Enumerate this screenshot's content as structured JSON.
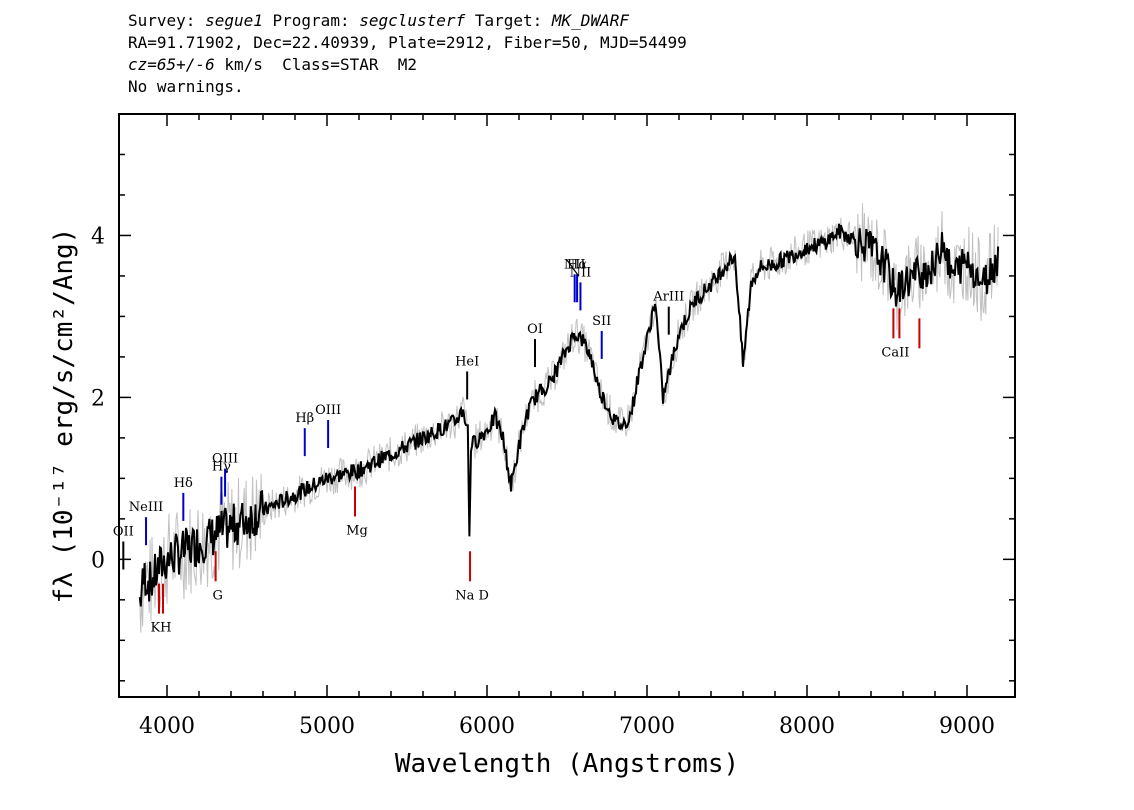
{
  "header": {
    "line1": {
      "survey_label": "Survey:",
      "survey": "segue1",
      "program_label": "Program:",
      "program": "segclusterf",
      "target_label": "Target:",
      "target": "MK_DWARF"
    },
    "line2": "RA=91.71902, Dec=22.40939, Plate=2912, Fiber=50, MJD=54499",
    "line3": {
      "cz": "cz=65+/-6",
      "rest": "km/s  Class=STAR  M2"
    },
    "line4": "No warnings."
  },
  "chart_data": {
    "type": "line",
    "xlabel": "Wavelength (Angstroms)",
    "ylabel": "fλ (10⁻¹⁷ erg/s/cm²/Ang)",
    "xlim": [
      3700,
      9300
    ],
    "ylim": [
      -1.7,
      5.5
    ],
    "x_ticks": [
      4000,
      5000,
      6000,
      7000,
      8000,
      9000
    ],
    "y_ticks": [
      0,
      2,
      4
    ],
    "grid": false,
    "colors": {
      "flux": "#000000",
      "error": "#c0c0c0",
      "emission": "#0000cc",
      "absorption": "#cc0000",
      "sky": "#000000"
    },
    "series": [
      {
        "name": "flux",
        "x": [
          3830,
          3860,
          3900,
          3950,
          4000,
          4050,
          4100,
          4150,
          4200,
          4300,
          4400,
          4500,
          4600,
          4700,
          4800,
          4900,
          5000,
          5100,
          5200,
          5300,
          5400,
          5500,
          5600,
          5700,
          5800,
          5850,
          5880,
          5890,
          5900,
          5950,
          6000,
          6050,
          6100,
          6150,
          6200,
          6250,
          6300,
          6350,
          6400,
          6450,
          6500,
          6550,
          6600,
          6650,
          6700,
          6750,
          6800,
          6850,
          6900,
          6950,
          7000,
          7050,
          7100,
          7150,
          7200,
          7300,
          7400,
          7500,
          7550,
          7600,
          7650,
          7700,
          7800,
          7900,
          8000,
          8100,
          8200,
          8300,
          8400,
          8500,
          8550,
          8600,
          8700,
          8800,
          8850,
          8900,
          9000,
          9100,
          9200
        ],
        "y": [
          -0.5,
          -0.2,
          -0.3,
          -0.1,
          0.0,
          0.05,
          0.1,
          0.15,
          0.2,
          0.3,
          0.4,
          0.5,
          0.6,
          0.7,
          0.8,
          0.9,
          1.0,
          1.05,
          1.1,
          1.2,
          1.3,
          1.4,
          1.5,
          1.6,
          1.7,
          1.85,
          1.6,
          0.3,
          1.4,
          1.5,
          1.6,
          1.75,
          1.5,
          0.9,
          1.4,
          1.8,
          2.0,
          2.1,
          2.2,
          2.4,
          2.6,
          2.8,
          2.7,
          2.5,
          2.1,
          1.9,
          1.7,
          1.65,
          1.8,
          2.3,
          2.7,
          3.2,
          2.0,
          2.4,
          2.8,
          3.2,
          3.4,
          3.65,
          3.75,
          2.4,
          3.4,
          3.6,
          3.65,
          3.75,
          3.85,
          3.9,
          4.05,
          3.95,
          3.85,
          3.6,
          3.3,
          3.4,
          3.55,
          3.6,
          4.0,
          3.5,
          3.7,
          3.4,
          3.75
        ]
      }
    ],
    "emission_lines": [
      {
        "label": "OII",
        "x": 3727
      },
      {
        "label": "NeIII",
        "x": 3869
      },
      {
        "label": "Hδ",
        "x": 4102
      },
      {
        "label": "Hγ",
        "x": 4340
      },
      {
        "label": "OIII",
        "x": 4363
      },
      {
        "label": "Hβ",
        "x": 4861
      },
      {
        "label": "OIII",
        "x": 5007
      },
      {
        "label": "HeI",
        "x": 5876
      },
      {
        "label": "OI",
        "x": 6300
      },
      {
        "label": "NII",
        "x": 6548
      },
      {
        "label": "Hα",
        "x": 6563
      },
      {
        "label": "NII",
        "x": 6584
      },
      {
        "label": "SII",
        "x": 6717
      },
      {
        "label": "ArIII",
        "x": 7136
      }
    ],
    "absorption_lines": [
      {
        "label": "KH",
        "x": 3950
      },
      {
        "label": "G",
        "x": 4304
      },
      {
        "label": "Mg",
        "x": 5175
      },
      {
        "label": "Na D",
        "x": 5894
      },
      {
        "label": "CaII",
        "x": 8540
      }
    ]
  }
}
